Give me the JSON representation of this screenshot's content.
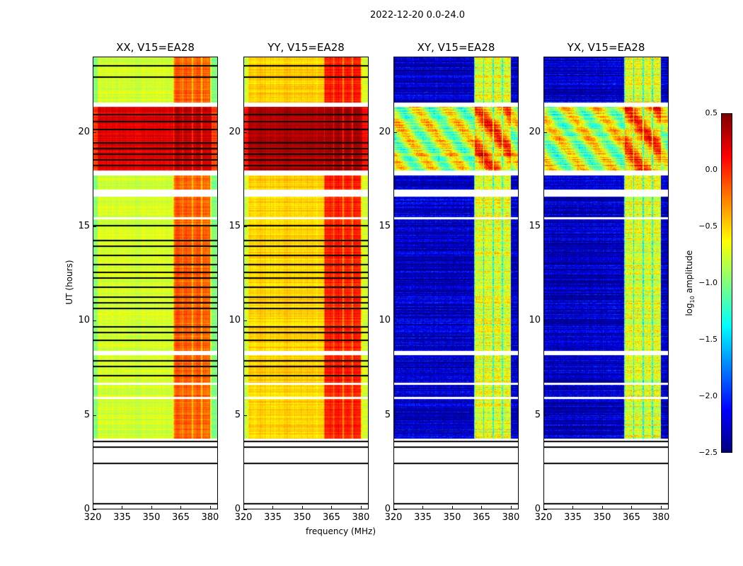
{
  "chart_data": {
    "type": "heatmap",
    "title": "2022-12-20 0.0-24.0",
    "xlabel": "frequency (MHz)",
    "ylabel": "UT (hours)",
    "xlim": [
      320,
      384
    ],
    "ylim": [
      0,
      24
    ],
    "xticks": [
      "320",
      "335",
      "350",
      "365",
      "380"
    ],
    "xtick_values": [
      320,
      335,
      350,
      365,
      380
    ],
    "yticks": [
      "0",
      "5",
      "10",
      "15",
      "20"
    ],
    "ytick_values": [
      0,
      5,
      10,
      15,
      20
    ],
    "colorbar": {
      "label_prefix": "log",
      "label_sub": "10",
      "label_suffix": " amplitude",
      "range": [
        -2.5,
        0.5
      ],
      "ticks": [
        "0.5",
        "0.0",
        "−0.5",
        "−1.0",
        "−1.5",
        "−2.0",
        "−2.5"
      ],
      "tick_values": [
        0.5,
        0.0,
        -0.5,
        -1.0,
        -1.5,
        -2.0,
        -2.5
      ],
      "colormap": "jet"
    },
    "panels": [
      {
        "title": "XX, V15=EA28",
        "base_level": -0.75,
        "band_level": -0.15,
        "flare_base": 0.2,
        "flare_band": 0.3
      },
      {
        "title": "YY, V15=EA28",
        "base_level": -0.5,
        "band_level": 0.05,
        "flare_base": 0.35,
        "flare_band": 0.4
      },
      {
        "title": "XY, V15=EA28",
        "base_level": -2.3,
        "band_level": -0.7,
        "flare_base": -0.8,
        "flare_band": -0.3
      },
      {
        "title": "YX, V15=EA28",
        "base_level": -2.3,
        "band_level": -0.7,
        "flare_base": -0.8,
        "flare_band": -0.3
      }
    ],
    "band_MHz": [
      361,
      380
    ],
    "data_hours": [
      3.75,
      24.0
    ],
    "flare_hours": [
      18.0,
      21.4
    ],
    "gap_hours": [
      [
        5.85,
        5.95
      ],
      [
        6.6,
        6.7
      ],
      [
        8.2,
        8.4
      ],
      [
        15.4,
        15.5
      ],
      [
        16.6,
        17.0
      ],
      [
        17.75,
        18.0
      ],
      [
        21.4,
        21.6
      ]
    ],
    "flag_line_hours": [
      3.3,
      2.45,
      0.3,
      3.6,
      7.1,
      7.6,
      7.9,
      9.0,
      9.4,
      9.7,
      10.7,
      11.0,
      11.3,
      11.8,
      12.3,
      12.6,
      13.0,
      13.5,
      14.0,
      14.3,
      15.1,
      18.3,
      18.6,
      18.9,
      19.2,
      19.5,
      20.2,
      20.6,
      21.0,
      23.0,
      23.6
    ]
  }
}
